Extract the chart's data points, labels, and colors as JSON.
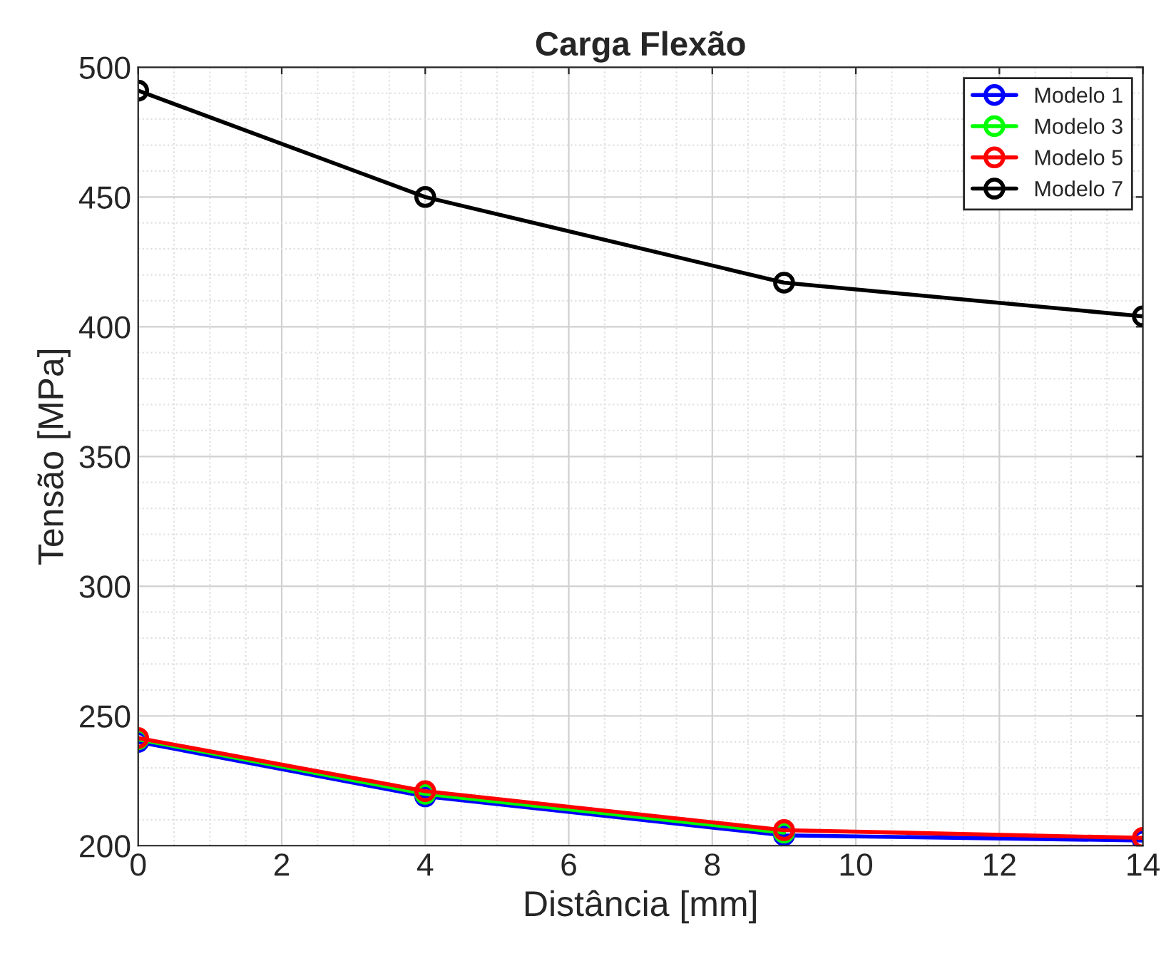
{
  "chart_data": {
    "type": "line",
    "title": "Carga Flexão",
    "xlabel": "Distância [mm]",
    "ylabel": "Tensão [MPa]",
    "x": [
      0,
      4,
      9,
      14
    ],
    "series": [
      {
        "name": "Modelo 1",
        "color": "#0000ff",
        "values": [
          240,
          219,
          204,
          202
        ]
      },
      {
        "name": "Modelo 3",
        "color": "#00ff00",
        "values": [
          241,
          220,
          205,
          null
        ]
      },
      {
        "name": "Modelo 5",
        "color": "#ff0000",
        "values": [
          241.5,
          221,
          206,
          203
        ]
      },
      {
        "name": "Modelo 7",
        "color": "#000000",
        "values": [
          491,
          450,
          417,
          404
        ]
      }
    ],
    "xlim": [
      0,
      14
    ],
    "xticks": [
      0,
      2,
      4,
      6,
      8,
      10,
      12,
      14
    ],
    "ylim": [
      200,
      500
    ],
    "yticks": [
      200,
      250,
      300,
      350,
      400,
      450,
      500
    ],
    "grid": true,
    "legend": "top right",
    "marker": "circle",
    "line_style": "solid"
  }
}
